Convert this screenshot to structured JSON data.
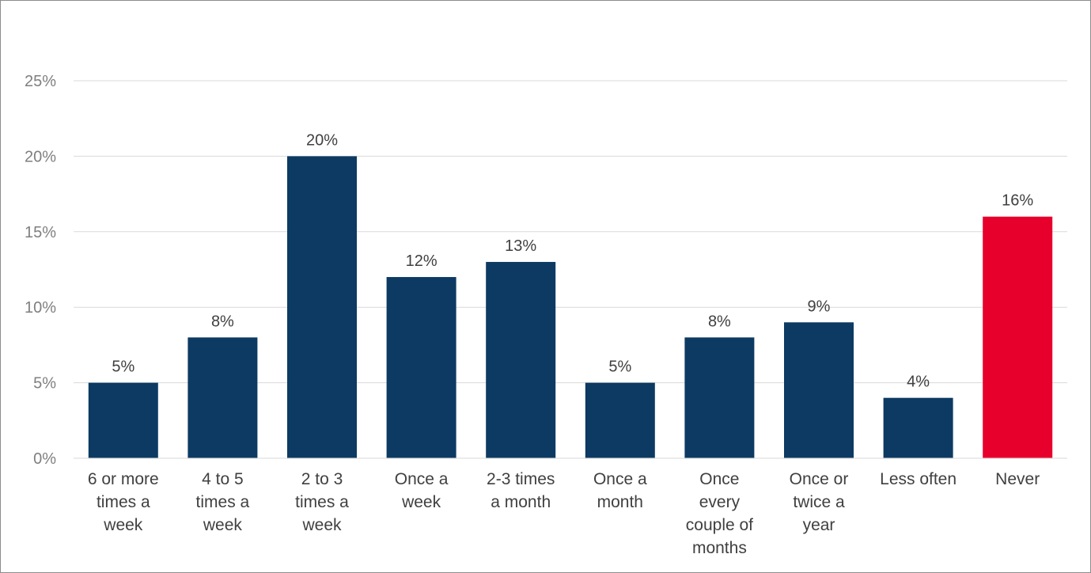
{
  "chart_data": {
    "type": "bar",
    "categories": [
      "6 or more times a week",
      "4 to 5 times a week",
      "2 to 3 times a week",
      "Once a week",
      "2-3 times a month",
      "Once a month",
      "Once every couple of months",
      "Once or twice a year",
      "Less often",
      "Never"
    ],
    "category_lines": [
      [
        "6 or more",
        "times a",
        "week"
      ],
      [
        "4 to 5",
        "times a",
        "week"
      ],
      [
        "2 to 3",
        "times a",
        "week"
      ],
      [
        "Once a",
        "week"
      ],
      [
        "2-3 times",
        "a month"
      ],
      [
        "Once a",
        "month"
      ],
      [
        "Once",
        "every",
        "couple of",
        "months"
      ],
      [
        "Once or",
        "twice a",
        "year"
      ],
      [
        "Less often"
      ],
      [
        "Never"
      ]
    ],
    "values": [
      5,
      8,
      20,
      12,
      13,
      5,
      8,
      9,
      4,
      16
    ],
    "data_labels": [
      "5%",
      "8%",
      "20%",
      "12%",
      "13%",
      "5%",
      "8%",
      "9%",
      "4%",
      "16%"
    ],
    "title": "",
    "xlabel": "",
    "ylabel": "",
    "ylim": [
      0,
      25
    ],
    "yticks": [
      0,
      5,
      10,
      15,
      20,
      25
    ],
    "ytick_labels": [
      "0%",
      "5%",
      "10%",
      "15%",
      "20%",
      "25%"
    ],
    "grid": true,
    "legend": "none",
    "bar_colors": [
      "#0c3a62",
      "#0c3a62",
      "#0c3a62",
      "#0c3a62",
      "#0c3a62",
      "#0c3a62",
      "#0c3a62",
      "#0c3a62",
      "#0c3a62",
      "#e8002d"
    ],
    "gridline_color": "#d9d9d9"
  }
}
